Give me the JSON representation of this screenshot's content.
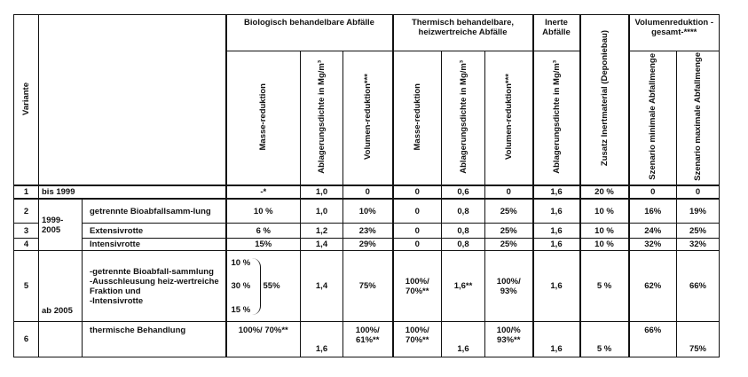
{
  "header": {
    "variante": "Variante",
    "bio_group": "Biologisch behandelbare Abfälle",
    "thermal_group": "Thermisch behandelbare, heizwertreiche Abfälle",
    "inert_group": "Inerte Abfälle",
    "volumen_group": "Volumenreduktion -gesamt-****",
    "masse": "Masse-reduktion",
    "dichte": "Ablagerungsdichte in Mg/m³",
    "volumen": "Volumen-reduktion***",
    "inert_dichte": "Ablagerungsdichte in Mg/m³",
    "zusatz": "Zusatz Inertmaterial (Deponiebau)",
    "szen_min": "Szenario minimale Abfallmenge",
    "szen_max": "Szenario maximale Abfallmenge"
  },
  "rows": [
    {
      "nr": "1",
      "zeitraum": "bis 1999",
      "massnahme": "",
      "bio_masse": "-*",
      "bio_dichte": "1,0",
      "bio_vol": "0",
      "th_masse": "0",
      "th_dichte": "0,6",
      "th_vol": "0",
      "inert": "1,6",
      "zusatz": "20 %",
      "vmin": "0",
      "vmax": "0"
    },
    {
      "nr": "2",
      "zeitraum": "",
      "massnahme": "getrennte Bioabfallsamm-lung",
      "bio_masse": "10 %",
      "bio_dichte": "1,0",
      "bio_vol": "10%",
      "th_masse": "0",
      "th_dichte": "0,8",
      "th_vol": "25%",
      "inert": "1,6",
      "zusatz": "10 %",
      "vmin": "16%",
      "vmax": "19%"
    },
    {
      "nr": "3",
      "zeitraum": "1999-2005",
      "massnahme": "Extensivrotte",
      "bio_masse": "6 %",
      "bio_dichte": "1,2",
      "bio_vol": "23%",
      "th_masse": "0",
      "th_dichte": "0,8",
      "th_vol": "25%",
      "inert": "1,6",
      "zusatz": "10 %",
      "vmin": "24%",
      "vmax": "25%"
    },
    {
      "nr": "4",
      "zeitraum": "",
      "massnahme": "Intensivrotte",
      "bio_masse": "15%",
      "bio_dichte": "1,4",
      "bio_vol": "29%",
      "th_masse": "0",
      "th_dichte": "0,8",
      "th_vol": "25%",
      "inert": "1,6",
      "zusatz": "10 %",
      "vmin": "32%",
      "vmax": "32%"
    },
    {
      "nr": "5",
      "zeitraum": "ab 2005",
      "massnahme": "-getrennte Bioabfall-sammlung\n-Ausschleusung heiz-wertreiche Fraktion und\n-Intensivrotte",
      "bio_masse_parts": [
        "10 %",
        "30 %",
        "15 %"
      ],
      "bio_masse_total": "55%",
      "bio_dichte": "1,4",
      "bio_vol": "75%",
      "th_masse": "100%/ 70%**",
      "th_dichte": "1,6**",
      "th_vol": "100%/ 93%",
      "inert": "1,6",
      "zusatz": "5 %",
      "vmin": "62%",
      "vmax": "66%"
    },
    {
      "nr": "6",
      "zeitraum": "",
      "massnahme": "thermische Behandlung",
      "bio_masse": "100%/ 70%**",
      "bio_dichte": "1,6",
      "bio_vol": "100%/ 61%**",
      "th_masse": "100%/ 70%**",
      "th_dichte": "1,6",
      "th_vol": "100/% 93%**",
      "inert": "1,6",
      "zusatz": "5 %",
      "vmin": "66%",
      "vmax": "75%"
    }
  ]
}
